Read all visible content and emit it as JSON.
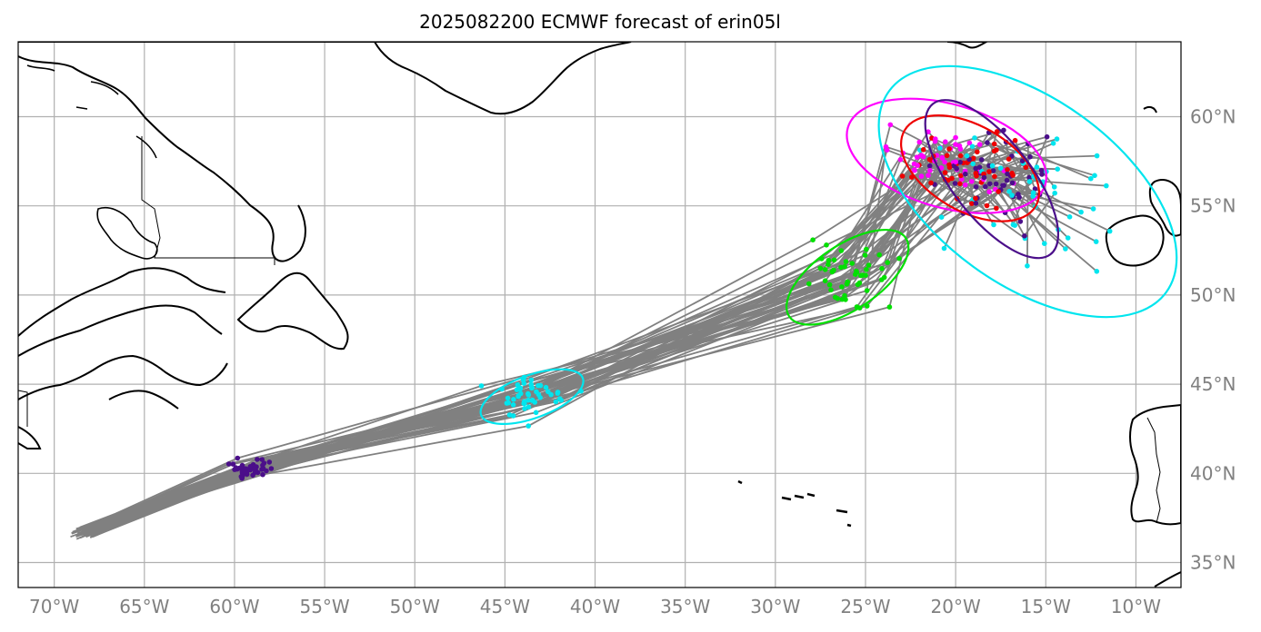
{
  "title": "2025082200 ECMWF forecast of erin05l",
  "map": {
    "lon_range": [
      -72,
      -7.5
    ],
    "lat_range": [
      33.6,
      64.2
    ],
    "grid": true,
    "lon_ticks": [
      {
        "value": -70,
        "label": "70°W"
      },
      {
        "value": -65,
        "label": "65°W"
      },
      {
        "value": -60,
        "label": "60°W"
      },
      {
        "value": -55,
        "label": "55°W"
      },
      {
        "value": -50,
        "label": "50°W"
      },
      {
        "value": -45,
        "label": "45°W"
      },
      {
        "value": -40,
        "label": "40°W"
      },
      {
        "value": -35,
        "label": "35°W"
      },
      {
        "value": -30,
        "label": "30°W"
      },
      {
        "value": -25,
        "label": "25°W"
      },
      {
        "value": -20,
        "label": "20°W"
      },
      {
        "value": -15,
        "label": "15°W"
      },
      {
        "value": -10,
        "label": "10°W"
      }
    ],
    "lat_ticks": [
      {
        "value": 60,
        "label": "60°N"
      },
      {
        "value": 55,
        "label": "55°N"
      },
      {
        "value": 50,
        "label": "50°N"
      },
      {
        "value": 45,
        "label": "45°N"
      },
      {
        "value": 40,
        "label": "40°N"
      },
      {
        "value": 35,
        "label": "35°N"
      }
    ],
    "track_color": "#808080",
    "ensemble_members": 50,
    "track_start": {
      "lon": -68.4,
      "lat": 36.6
    },
    "track_spread": {
      "lon": 0.6,
      "lat": 0.3
    },
    "forecast_times": [
      {
        "color": "#4b0f8a",
        "center": {
          "lon": -59.2,
          "lat": 40.3
        },
        "spread": {
          "lon": 0.8,
          "lat": 0.4
        },
        "ellipse": null
      },
      {
        "color": "#00e5ee",
        "center": {
          "lon": -43.5,
          "lat": 44.3
        },
        "spread": {
          "lon": 2.0,
          "lat": 1.0
        },
        "ellipse": {
          "lon": -43.5,
          "lat": 44.3,
          "rx_deg": 3.0,
          "ry_deg": 1.2,
          "angle": -20
        }
      },
      {
        "color": "#00e000",
        "center": {
          "lon": -26.0,
          "lat": 51.0
        },
        "spread": {
          "lon": 2.2,
          "lat": 1.4
        },
        "ellipse": {
          "lon": -26.0,
          "lat": 51.0,
          "rx_deg": 3.9,
          "ry_deg": 1.8,
          "angle": -34
        }
      },
      {
        "color": "#ff00ff",
        "center": {
          "lon": -20.5,
          "lat": 57.8
        },
        "spread": {
          "lon": 2.8,
          "lat": 1.6
        },
        "ellipse": {
          "lon": -20.5,
          "lat": 57.8,
          "rx_deg": 5.7,
          "ry_deg": 2.9,
          "angle": 16
        }
      },
      {
        "color": "#ee0000",
        "center": {
          "lon": -19.2,
          "lat": 57.1
        },
        "spread": {
          "lon": 2.5,
          "lat": 1.6
        },
        "ellipse": {
          "lon": -19.2,
          "lat": 57.1,
          "rx_deg": 4.2,
          "ry_deg": 2.4,
          "angle": 30
        }
      },
      {
        "color": "#4b0f8a",
        "center": {
          "lon": -18.0,
          "lat": 56.5
        },
        "spread": {
          "lon": 2.6,
          "lat": 2.2
        },
        "ellipse": {
          "lon": -18.0,
          "lat": 56.5,
          "rx_deg": 5.3,
          "ry_deg": 2.2,
          "angle": 52
        }
      },
      {
        "color": "#00e5ee",
        "center": {
          "lon": -16.0,
          "lat": 55.8
        },
        "spread": {
          "lon": 4.5,
          "lat": 3.0
        },
        "ellipse": {
          "lon": -16.0,
          "lat": 55.8,
          "rx_deg": 9.5,
          "ry_deg": 5.2,
          "angle": 36
        }
      }
    ],
    "land_color": "#ffffff",
    "coast_color": "#000000"
  }
}
